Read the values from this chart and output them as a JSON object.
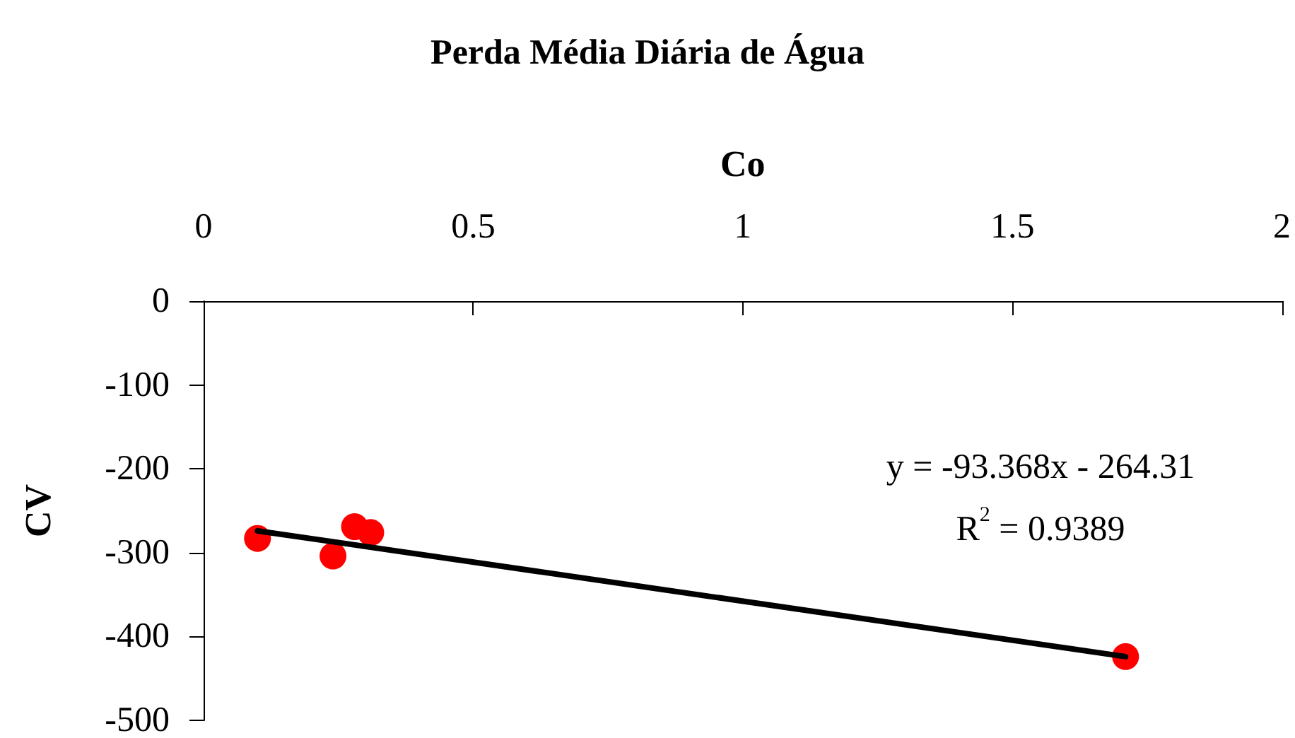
{
  "chart_data": {
    "type": "scatter",
    "title": "Perda Média Diária de Água",
    "xlabel": "Co",
    "ylabel": "CV",
    "xlim": [
      0,
      2
    ],
    "xticks": [
      0,
      0.5,
      1,
      1.5,
      2
    ],
    "ylim": [
      -500,
      0
    ],
    "yticks": [
      -500,
      -400,
      -300,
      -200,
      -100,
      0
    ],
    "marker": "circle",
    "series": [
      {
        "color": "#ff0000",
        "x": [
          0.1,
          0.24,
          0.28,
          0.31,
          1.71
        ],
        "values": [
          -283,
          -304,
          -269,
          -276,
          -424
        ]
      },
      {
        "type": "line",
        "color": "#000000",
        "line_style": "solid",
        "marker": "none",
        "x": [
          0.1,
          1.71
        ],
        "values": [
          -274,
          -424
        ]
      }
    ],
    "annotations": [
      "y = -93.368x - 264.31",
      "R$^{2}$ = 0.9389"
    ]
  }
}
